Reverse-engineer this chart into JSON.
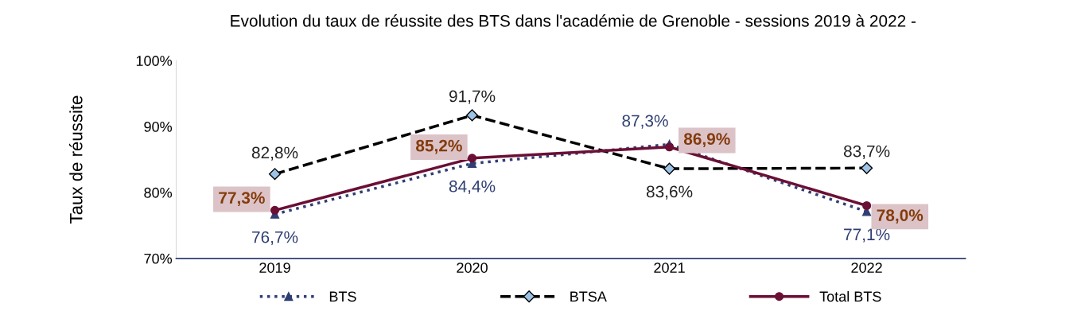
{
  "chart_data": {
    "type": "line",
    "title": "Evolution du taux de réussite des BTS dans l'académie de Grenoble - sessions 2019 à 2022 -",
    "ylabel": "Taux de réussite",
    "categories": [
      "2019",
      "2020",
      "2021",
      "2022"
    ],
    "ylim": [
      70,
      100
    ],
    "yticks": [
      {
        "value": 70,
        "label": "70%"
      },
      {
        "value": 80,
        "label": "80%"
      },
      {
        "value": 90,
        "label": "90%"
      },
      {
        "value": 100,
        "label": "100%"
      }
    ],
    "grid": false,
    "legend": "bottom",
    "series": [
      {
        "name": "BTS",
        "color": "#2f3f73",
        "values": [
          76.7,
          84.4,
          87.3,
          77.1
        ],
        "marker": "triangle",
        "line_style": "dotted",
        "value_labels": [
          "76,7%",
          "84,4%",
          "87,3%",
          "77,1%"
        ]
      },
      {
        "name": "BTSA",
        "color": "#000000",
        "values": [
          82.8,
          91.7,
          83.6,
          83.7
        ],
        "marker": "diamond",
        "line_style": "dashed",
        "value_labels": [
          "82,8%",
          "91,7%",
          "83,6%",
          "83,7%"
        ]
      },
      {
        "name": "Total BTS",
        "color": "#6b0f35",
        "values": [
          77.3,
          85.2,
          86.9,
          78.0
        ],
        "marker": "circle",
        "line_style": "solid",
        "value_labels": [
          "77,3%",
          "85,2%",
          "86,9%",
          "78,0%"
        ]
      }
    ]
  }
}
